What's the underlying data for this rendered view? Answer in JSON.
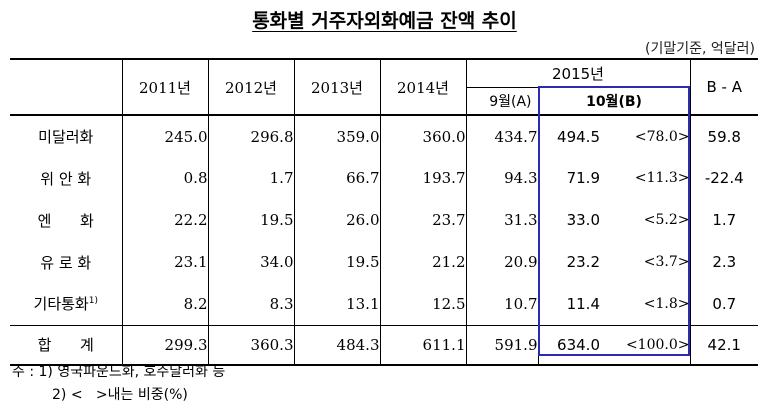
{
  "title": "통화별 거주자외화예금 잔액 추이",
  "unit": "(기말기준, 억달러)",
  "header": {
    "years": [
      "2011년",
      "2012년",
      "2013년",
      "2014년"
    ],
    "year_2015": "2015년",
    "sep": "9월(A)",
    "oct": "10월(B)",
    "diff": "B - A"
  },
  "rows": [
    {
      "label": "미달러화",
      "sup": "",
      "v": [
        "245.0",
        "296.8",
        "359.0",
        "360.0",
        "434.7"
      ],
      "oct": "494.5",
      "share": "<78.0>",
      "diff": "59.8"
    },
    {
      "label": "위 안 화",
      "sup": "",
      "v": [
        "0.8",
        "1.7",
        "66.7",
        "193.7",
        "94.3"
      ],
      "oct": "71.9",
      "share": "<11.3>",
      "diff": "-22.4"
    },
    {
      "label": "엔      화",
      "sup": "",
      "v": [
        "22.2",
        "19.5",
        "26.0",
        "23.7",
        "31.3"
      ],
      "oct": "33.0",
      "share": "<5.2>",
      "diff": "1.7"
    },
    {
      "label": "유 로 화",
      "sup": "",
      "v": [
        "23.1",
        "34.0",
        "19.5",
        "21.2",
        "20.9"
      ],
      "oct": "23.2",
      "share": "<3.7>",
      "diff": "2.3"
    },
    {
      "label": "기타통화",
      "sup": "1)",
      "v": [
        "8.2",
        "8.3",
        "13.1",
        "12.5",
        "10.7"
      ],
      "oct": "11.4",
      "share": "<1.8>",
      "diff": "0.7"
    }
  ],
  "total": {
    "label": "합      계",
    "v": [
      "299.3",
      "360.3",
      "484.3",
      "611.1",
      "591.9"
    ],
    "oct": "634.0",
    "share": "<100.0>",
    "diff": "42.1"
  },
  "notes": {
    "line1": "주 : 1) 영국파운드화, 호주달러화 등",
    "line2": "2) <   >내는 비중(%)"
  },
  "colors": {
    "highlight": "#2b2bb0"
  }
}
